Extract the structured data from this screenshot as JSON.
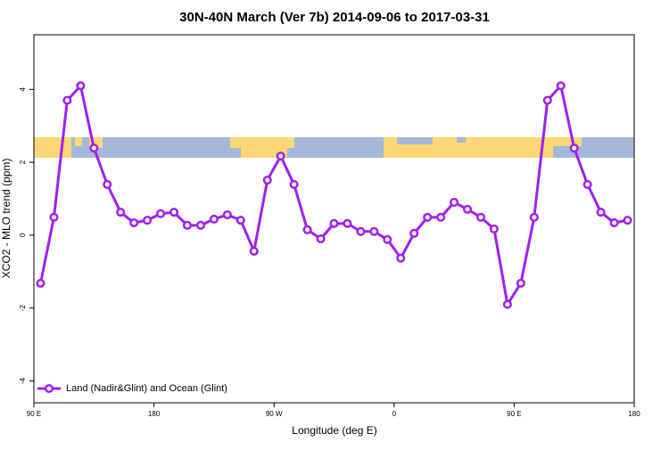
{
  "chart_data": {
    "type": "line",
    "title": "30N-40N March (Ver 7b)   2014-09-06 to 2017-03-31",
    "x_label": "Longitude (deg E)",
    "y_label": "XCO2 - MLO trend (ppm)",
    "x": [
      95,
      105,
      115,
      125,
      135,
      145,
      155,
      165,
      175,
      185,
      195,
      205,
      215,
      225,
      235,
      245,
      255,
      265,
      275,
      285,
      295,
      305,
      315,
      325,
      335,
      345,
      355,
      365,
      375,
      385,
      395,
      405,
      415,
      425,
      435,
      445,
      455,
      465,
      475,
      485,
      495,
      505,
      515,
      525,
      535
    ],
    "series": [
      {
        "name": "Land (Nadir&Glint) and Ocean (Glint)",
        "color": "#a020f0",
        "values": [
          -1.32,
          0.49,
          3.7,
          4.1,
          2.39,
          1.39,
          0.63,
          0.34,
          0.41,
          0.59,
          0.63,
          0.27,
          0.27,
          0.44,
          0.56,
          0.41,
          -0.44,
          1.51,
          2.17,
          1.39,
          0.15,
          -0.1,
          0.32,
          0.32,
          0.1,
          0.1,
          -0.12,
          -0.63,
          0.05,
          0.49,
          0.49,
          0.9,
          0.71,
          0.49,
          0.17,
          -1.9,
          -1.32,
          0.49,
          3.7,
          4.1,
          2.39,
          1.39,
          0.63,
          0.34,
          0.41
        ]
      }
    ],
    "xlim": [
      90,
      540
    ],
    "xticks": [
      {
        "value": 90,
        "label": "90 E"
      },
      180,
      {
        "value": 270,
        "label": "90 W"
      },
      {
        "value": 360,
        "label": "0"
      },
      {
        "value": 450,
        "label": "90 E"
      },
      {
        "value": 540,
        "label": "180"
      }
    ],
    "ylim": [
      -4.6,
      5.5
    ],
    "yticks": [
      -4,
      -2,
      0,
      2,
      4
    ],
    "legend": "bottom-left"
  }
}
